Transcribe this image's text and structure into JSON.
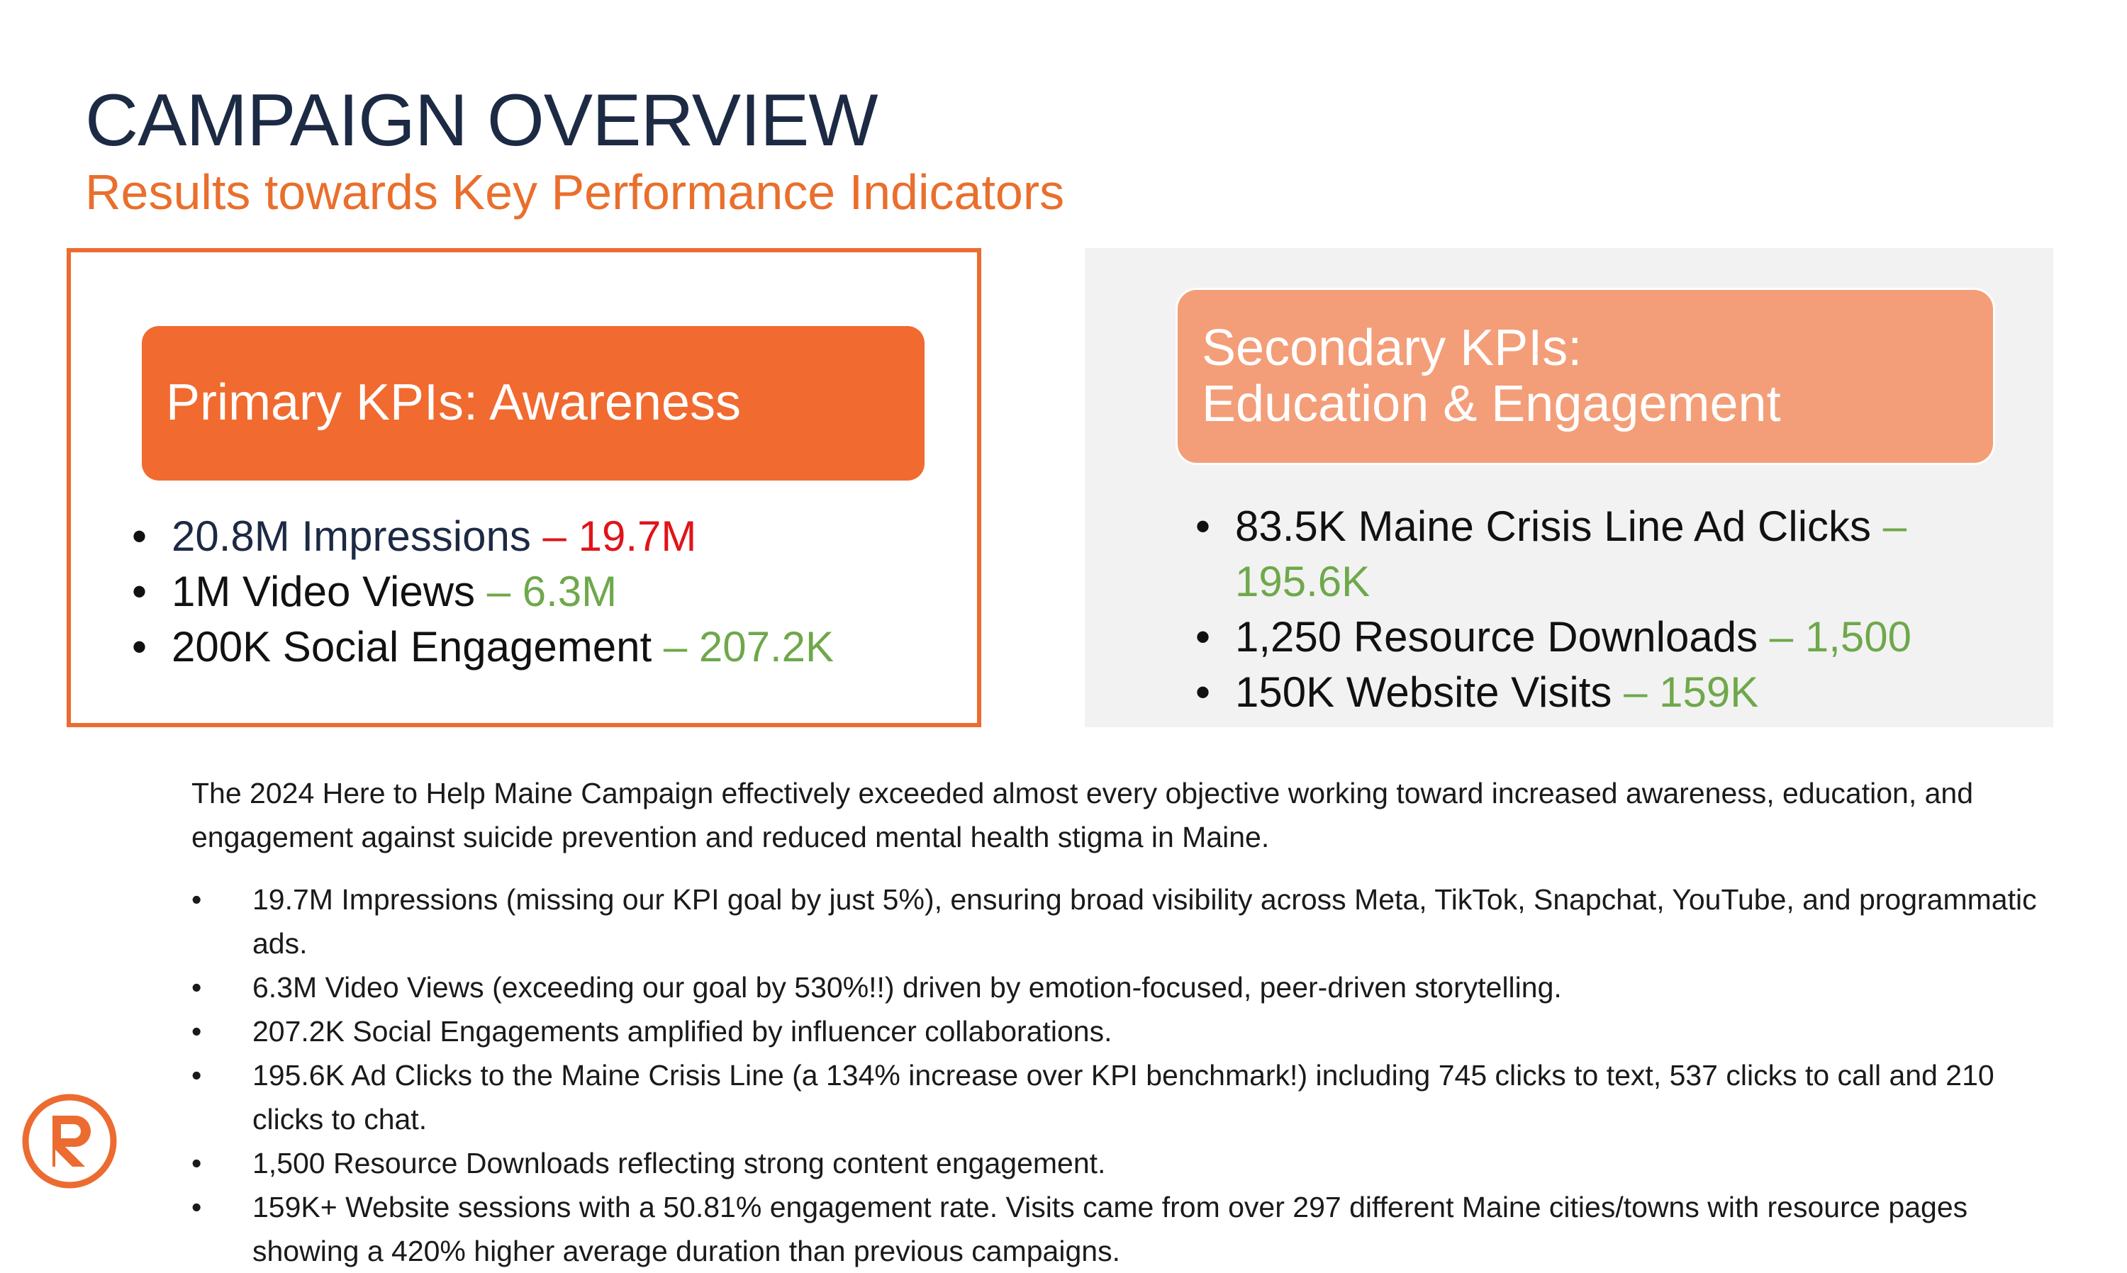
{
  "header": {
    "title": "CAMPAIGN OVERVIEW",
    "subtitle": "Results towards Key Performance Indicators"
  },
  "primary": {
    "heading": "Primary KPIs: Awareness",
    "items": [
      {
        "goal": "20.8M Impressions",
        "result": "– 19.7M"
      },
      {
        "goal": "1M Video Views",
        "result": "– 6.3M"
      },
      {
        "goal": "200K Social Engagement",
        "result": "– 207.2K"
      }
    ]
  },
  "secondary": {
    "heading_line1": "Secondary KPIs:",
    "heading_line2": "Education & Engagement",
    "items": [
      {
        "goal": "83.5K Maine Crisis Line Ad Clicks",
        "result": "– 195.6K"
      },
      {
        "goal": "1,250 Resource Downloads",
        "result": "– 1,500"
      },
      {
        "goal": "150K Website Visits",
        "result": "– 159K"
      }
    ]
  },
  "summary": "The 2024 Here to Help Maine Campaign effectively exceeded almost every objective working toward increased awareness, education, and engagement against suicide prevention and reduced mental health stigma in Maine.",
  "details": [
    "19.7M Impressions (missing our KPI goal by just 5%), ensuring broad visibility across Meta, TikTok, Snapchat, YouTube, and programmatic ads.",
    "6.3M Video Views (exceeding our goal by 530%!!) driven by emotion-focused, peer-driven storytelling.",
    "207.2K Social Engagements amplified by influencer collaborations.",
    "195.6K Ad Clicks to the Maine Crisis Line (a 134% increase over KPI benchmark!) including 745 clicks to text, 537 clicks to call and 210 clicks to chat.",
    "1,500 Resource Downloads reflecting strong content engagement.",
    "159K+ Website sessions with a 50.81% engagement rate. Visits came from over 297 different Maine cities/towns with resource pages showing a 420% higher average duration than previous campaigns."
  ],
  "bullet_char": "•",
  "colors": {
    "navy": "#1c2a44",
    "orange": "#f16a2f",
    "light_orange": "#f39e78",
    "red": "#e0141a",
    "green": "#6fa84b",
    "panel_gray": "#f2f2f2"
  },
  "logo": {
    "icon": "r-logo-icon"
  }
}
